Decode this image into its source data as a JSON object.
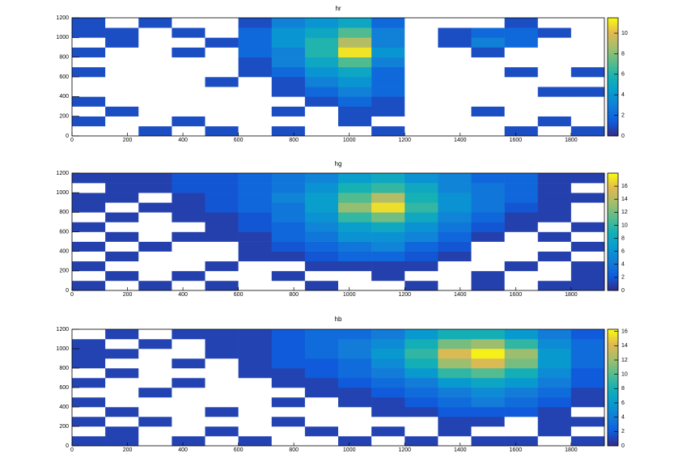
{
  "chart_data": [
    {
      "type": "heatmap",
      "title": "hr",
      "xbins": [
        0,
        120,
        240,
        360,
        480,
        600,
        720,
        840,
        960,
        1080,
        1200,
        1320,
        1440,
        1560,
        1680,
        1800,
        1920
      ],
      "ybins": [
        0,
        100,
        200,
        300,
        400,
        500,
        600,
        700,
        800,
        900,
        1000,
        1100,
        1200
      ],
      "xlim": [
        0,
        1920
      ],
      "ylim": [
        0,
        1200
      ],
      "xticks": [
        0,
        200,
        400,
        600,
        800,
        1000,
        1200,
        1400,
        1600,
        1800
      ],
      "yticks": [
        0,
        200,
        400,
        600,
        800,
        1000,
        1200
      ],
      "zlim": [
        0,
        11.5
      ],
      "zticks": [
        0,
        2,
        4,
        6,
        8,
        10
      ],
      "colorscale": [
        "#352a87",
        "#0f5cdd",
        "#127dd8",
        "#079ccf",
        "#15b1b4",
        "#59bd8c",
        "#a5be6b",
        "#e1b952",
        "#f9fb0e"
      ],
      "z": [
        [
          0,
          0,
          1,
          0,
          1,
          0,
          1,
          0,
          0,
          1,
          0,
          0,
          0,
          1,
          0,
          1
        ],
        [
          1,
          0,
          0,
          1,
          0,
          0,
          0,
          0,
          1,
          0,
          0,
          0,
          0,
          0,
          1,
          0
        ],
        [
          0,
          1,
          0,
          0,
          0,
          0,
          1,
          0,
          1,
          1,
          0,
          0,
          1,
          0,
          0,
          0
        ],
        [
          1,
          0,
          0,
          0,
          0,
          0,
          0,
          1,
          2,
          1,
          0,
          0,
          0,
          0,
          0,
          0
        ],
        [
          0,
          0,
          0,
          0,
          0,
          0,
          1,
          2,
          3,
          2,
          0,
          0,
          0,
          0,
          1,
          1
        ],
        [
          0,
          0,
          0,
          0,
          1,
          0,
          1,
          3,
          4,
          2,
          0,
          0,
          0,
          0,
          0,
          0
        ],
        [
          1,
          0,
          0,
          0,
          0,
          1,
          2,
          4,
          5,
          2,
          0,
          0,
          0,
          1,
          0,
          1
        ],
        [
          0,
          0,
          0,
          0,
          0,
          1,
          3,
          5,
          7,
          3,
          0,
          0,
          0,
          0,
          0,
          0
        ],
        [
          1,
          0,
          0,
          1,
          0,
          2,
          3,
          6,
          11,
          4,
          0,
          0,
          1,
          0,
          0,
          0
        ],
        [
          0,
          1,
          0,
          0,
          1,
          2,
          4,
          6,
          9,
          3,
          0,
          1,
          3,
          2,
          0,
          0
        ],
        [
          1,
          1,
          0,
          1,
          0,
          2,
          4,
          5,
          7,
          3,
          0,
          1,
          2,
          2,
          1,
          0
        ],
        [
          1,
          0,
          1,
          0,
          0,
          1,
          3,
          4,
          5,
          2,
          0,
          0,
          0,
          1,
          0,
          0
        ]
      ]
    },
    {
      "type": "heatmap",
      "title": "hg",
      "xbins": [
        0,
        120,
        240,
        360,
        480,
        600,
        720,
        840,
        960,
        1080,
        1200,
        1320,
        1440,
        1560,
        1680,
        1800,
        1920
      ],
      "ybins": [
        0,
        100,
        200,
        300,
        400,
        500,
        600,
        700,
        800,
        900,
        1000,
        1100,
        1200
      ],
      "xlim": [
        0,
        1920
      ],
      "ylim": [
        0,
        1200
      ],
      "xticks": [
        0,
        200,
        400,
        600,
        800,
        1000,
        1200,
        1400,
        1600,
        1800
      ],
      "yticks": [
        0,
        200,
        400,
        600,
        800,
        1000,
        1200
      ],
      "zlim": [
        0,
        18
      ],
      "zticks": [
        0,
        2,
        4,
        6,
        8,
        10,
        12,
        14,
        16
      ],
      "colorscale": [
        "#352a87",
        "#0f5cdd",
        "#127dd8",
        "#079ccf",
        "#15b1b4",
        "#59bd8c",
        "#a5be6b",
        "#e1b952",
        "#f9fb0e"
      ],
      "z": [
        [
          1,
          0,
          1,
          0,
          1,
          0,
          0,
          1,
          0,
          0,
          1,
          0,
          1,
          0,
          1,
          1
        ],
        [
          0,
          1,
          0,
          1,
          0,
          0,
          1,
          0,
          0,
          1,
          0,
          0,
          1,
          0,
          0,
          1
        ],
        [
          1,
          0,
          0,
          0,
          1,
          0,
          0,
          1,
          1,
          1,
          1,
          0,
          0,
          1,
          0,
          1
        ],
        [
          0,
          1,
          0,
          0,
          0,
          1,
          1,
          2,
          3,
          3,
          2,
          1,
          0,
          0,
          1,
          0
        ],
        [
          1,
          0,
          1,
          0,
          0,
          1,
          2,
          3,
          4,
          5,
          3,
          2,
          0,
          0,
          0,
          1
        ],
        [
          0,
          1,
          0,
          1,
          1,
          1,
          3,
          4,
          6,
          6,
          5,
          3,
          1,
          0,
          1,
          0
        ],
        [
          1,
          0,
          0,
          0,
          1,
          2,
          3,
          5,
          7,
          8,
          6,
          4,
          2,
          1,
          0,
          1
        ],
        [
          0,
          1,
          0,
          1,
          1,
          2,
          4,
          6,
          10,
          12,
          8,
          5,
          3,
          1,
          1,
          0
        ],
        [
          1,
          0,
          1,
          1,
          2,
          3,
          4,
          7,
          13,
          17,
          10,
          6,
          4,
          2,
          1,
          0
        ],
        [
          1,
          1,
          0,
          1,
          2,
          3,
          5,
          7,
          11,
          14,
          9,
          6,
          4,
          3,
          1,
          1
        ],
        [
          0,
          1,
          1,
          2,
          2,
          3,
          4,
          6,
          9,
          10,
          8,
          5,
          4,
          3,
          1,
          0
        ],
        [
          1,
          1,
          1,
          2,
          2,
          3,
          4,
          5,
          7,
          8,
          6,
          5,
          3,
          3,
          1,
          1
        ]
      ]
    },
    {
      "type": "heatmap",
      "title": "hb",
      "xbins": [
        0,
        120,
        240,
        360,
        480,
        600,
        720,
        840,
        960,
        1080,
        1200,
        1320,
        1440,
        1560,
        1680,
        1800,
        1920
      ],
      "ybins": [
        0,
        100,
        200,
        300,
        400,
        500,
        600,
        700,
        800,
        900,
        1000,
        1100,
        1200
      ],
      "xlim": [
        0,
        1920
      ],
      "ylim": [
        0,
        1200
      ],
      "xticks": [
        0,
        200,
        400,
        600,
        800,
        1000,
        1200,
        1400,
        1600,
        1800
      ],
      "yticks": [
        0,
        200,
        400,
        600,
        800,
        1000,
        1200
      ],
      "zlim": [
        0,
        16.3
      ],
      "zticks": [
        0,
        2,
        4,
        6,
        8,
        10,
        12,
        14,
        16
      ],
      "colorscale": [
        "#352a87",
        "#0f5cdd",
        "#127dd8",
        "#079ccf",
        "#15b1b4",
        "#59bd8c",
        "#a5be6b",
        "#e1b952",
        "#f9fb0e"
      ],
      "z": [
        [
          1,
          1,
          0,
          1,
          0,
          1,
          0,
          0,
          1,
          0,
          1,
          0,
          1,
          1,
          0,
          1
        ],
        [
          0,
          1,
          0,
          0,
          1,
          0,
          0,
          1,
          0,
          1,
          0,
          1,
          0,
          0,
          1,
          0
        ],
        [
          1,
          0,
          1,
          0,
          0,
          0,
          1,
          0,
          0,
          0,
          0,
          1,
          1,
          0,
          1,
          1
        ],
        [
          0,
          1,
          0,
          0,
          1,
          0,
          0,
          0,
          0,
          1,
          1,
          2,
          2,
          2,
          1,
          0
        ],
        [
          1,
          0,
          0,
          0,
          0,
          0,
          1,
          0,
          1,
          1,
          2,
          3,
          4,
          3,
          2,
          1
        ],
        [
          0,
          0,
          1,
          0,
          0,
          0,
          0,
          1,
          1,
          2,
          3,
          4,
          5,
          4,
          3,
          1
        ],
        [
          1,
          0,
          0,
          1,
          0,
          0,
          1,
          1,
          2,
          3,
          4,
          6,
          7,
          6,
          4,
          2
        ],
        [
          0,
          1,
          0,
          0,
          0,
          1,
          1,
          2,
          3,
          4,
          6,
          9,
          10,
          8,
          5,
          2
        ],
        [
          1,
          0,
          0,
          1,
          0,
          1,
          2,
          2,
          3,
          5,
          8,
          12,
          14,
          11,
          6,
          3
        ],
        [
          1,
          1,
          0,
          0,
          1,
          1,
          2,
          3,
          4,
          6,
          9,
          14,
          16,
          12,
          6,
          3
        ],
        [
          1,
          0,
          1,
          0,
          1,
          1,
          2,
          3,
          4,
          5,
          8,
          11,
          12,
          9,
          5,
          3
        ],
        [
          0,
          1,
          0,
          1,
          1,
          1,
          2,
          3,
          3,
          4,
          6,
          8,
          8,
          6,
          4,
          2
        ]
      ]
    }
  ]
}
